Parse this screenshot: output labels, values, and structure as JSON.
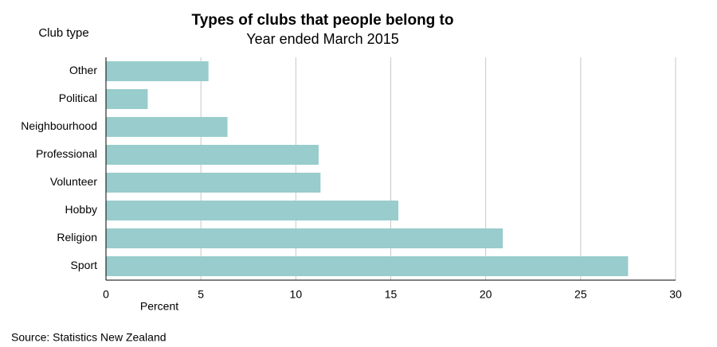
{
  "chart_data": {
    "type": "bar",
    "orientation": "horizontal",
    "title": "Types of clubs that people belong to",
    "subtitle": "Year ended March 2015",
    "y_label": "Club type",
    "x_label": "Percent",
    "source": "Source: Statistics New Zealand",
    "categories": [
      "Other",
      "Political",
      "Neighbourhood",
      "Professional",
      "Volunteer",
      "Hobby",
      "Religion",
      "Sport"
    ],
    "values": [
      5.4,
      2.2,
      6.4,
      11.2,
      11.3,
      15.4,
      20.9,
      27.5
    ],
    "color": "#99cccc",
    "xlim": [
      0,
      30
    ],
    "xticks": [
      0,
      5,
      10,
      15,
      20,
      25,
      30
    ],
    "grid": true
  }
}
